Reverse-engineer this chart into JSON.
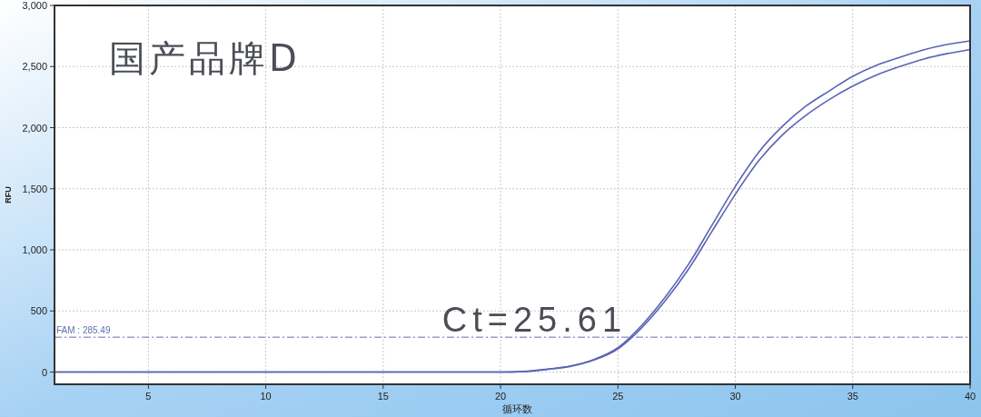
{
  "chart_data": {
    "type": "line",
    "title": "国产品牌D",
    "xlabel": "循环数",
    "ylabel": "RFU",
    "x": [
      1,
      2,
      3,
      4,
      5,
      6,
      7,
      8,
      9,
      10,
      11,
      12,
      13,
      14,
      15,
      16,
      17,
      18,
      19,
      20,
      21,
      22,
      23,
      24,
      25,
      26,
      27,
      28,
      29,
      30,
      31,
      32,
      33,
      34,
      35,
      36,
      37,
      38,
      39,
      40
    ],
    "series": [
      {
        "color": "#5a64b4",
        "values": [
          0,
          0,
          0,
          0,
          0,
          0,
          0,
          0,
          0,
          0,
          0,
          0,
          0,
          0,
          0,
          0,
          0,
          0,
          0,
          0,
          5,
          25,
          50,
          105,
          200,
          380,
          610,
          880,
          1200,
          1520,
          1800,
          2010,
          2175,
          2300,
          2420,
          2510,
          2575,
          2635,
          2680,
          2710
        ]
      },
      {
        "color": "#5a64b4",
        "values": [
          0,
          0,
          0,
          0,
          0,
          0,
          0,
          0,
          0,
          0,
          0,
          0,
          0,
          0,
          0,
          0,
          0,
          0,
          0,
          0,
          4,
          22,
          48,
          100,
          190,
          360,
          580,
          840,
          1150,
          1455,
          1730,
          1940,
          2100,
          2230,
          2340,
          2430,
          2500,
          2560,
          2605,
          2640
        ]
      }
    ],
    "xlim": [
      1,
      40
    ],
    "xticks": [
      5,
      10,
      15,
      20,
      25,
      30,
      35,
      40
    ],
    "ylim": [
      -100,
      3000
    ],
    "yticks": [
      {
        "value": 0,
        "label": "0"
      },
      {
        "value": 500,
        "label": "500"
      },
      {
        "value": 1000,
        "label": "1,000"
      },
      {
        "value": 1500,
        "label": "1,500"
      },
      {
        "value": 2000,
        "label": "2,000"
      },
      {
        "value": 2500,
        "label": "2,500"
      },
      {
        "value": 3000,
        "label": "3,000"
      }
    ],
    "grid": true,
    "line_style": "solid",
    "ref_lines": [
      {
        "axis": "y",
        "value": 285.49,
        "label": "FAM : 285.49",
        "color": "#6070b0",
        "line_style": "dashdot"
      }
    ],
    "annotations": [
      {
        "text": "Ct=25.61",
        "x": 25.61,
        "y": 285.49
      }
    ]
  }
}
